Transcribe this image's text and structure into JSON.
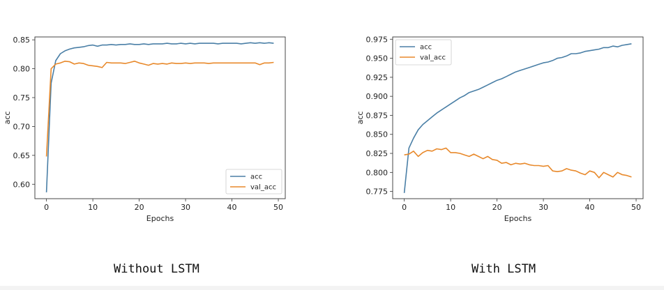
{
  "captions": {
    "left": "Without LSTM",
    "right": "With LSTM"
  },
  "colors": {
    "acc": "#4a7fa6",
    "val_acc": "#e8892b"
  },
  "chart_data": [
    {
      "type": "line",
      "xlabel": "Epochs",
      "ylabel": "acc",
      "xlim": [
        -2.5,
        51.5
      ],
      "ylim": [
        0.575,
        0.855
      ],
      "xticks": [
        0,
        10,
        20,
        30,
        40,
        50
      ],
      "xtick_labels": [
        "0",
        "10",
        "20",
        "30",
        "40",
        "50"
      ],
      "yticks": [
        0.6,
        0.65,
        0.7,
        0.75,
        0.8,
        0.85
      ],
      "ytick_labels": [
        "0.60",
        "0.65",
        "0.70",
        "0.75",
        "0.80",
        "0.85"
      ],
      "legend_position": "lower-right",
      "grid": false,
      "series": [
        {
          "name": "acc",
          "color": "#4a7fa6",
          "x": [
            0,
            1,
            2,
            3,
            4,
            5,
            6,
            7,
            8,
            9,
            10,
            11,
            12,
            13,
            14,
            15,
            16,
            17,
            18,
            19,
            20,
            21,
            22,
            23,
            24,
            25,
            26,
            27,
            28,
            29,
            30,
            31,
            32,
            33,
            34,
            35,
            36,
            37,
            38,
            39,
            40,
            41,
            42,
            43,
            44,
            45,
            46,
            47,
            48,
            49
          ],
          "values": [
            0.586,
            0.775,
            0.814,
            0.826,
            0.831,
            0.834,
            0.836,
            0.837,
            0.838,
            0.84,
            0.841,
            0.839,
            0.841,
            0.841,
            0.842,
            0.841,
            0.842,
            0.842,
            0.843,
            0.842,
            0.842,
            0.843,
            0.842,
            0.843,
            0.843,
            0.843,
            0.844,
            0.843,
            0.843,
            0.844,
            0.843,
            0.844,
            0.843,
            0.844,
            0.844,
            0.844,
            0.844,
            0.843,
            0.844,
            0.844,
            0.844,
            0.844,
            0.843,
            0.844,
            0.845,
            0.844,
            0.845,
            0.844,
            0.845,
            0.844
          ]
        },
        {
          "name": "val_acc",
          "color": "#e8892b",
          "x": [
            0,
            1,
            2,
            3,
            4,
            5,
            6,
            7,
            8,
            9,
            10,
            11,
            12,
            13,
            14,
            15,
            16,
            17,
            18,
            19,
            20,
            21,
            22,
            23,
            24,
            25,
            26,
            27,
            28,
            29,
            30,
            31,
            32,
            33,
            34,
            35,
            36,
            37,
            38,
            39,
            40,
            41,
            42,
            43,
            44,
            45,
            46,
            47,
            48,
            49
          ],
          "values": [
            0.648,
            0.8,
            0.808,
            0.81,
            0.813,
            0.812,
            0.808,
            0.81,
            0.809,
            0.806,
            0.805,
            0.804,
            0.802,
            0.811,
            0.81,
            0.81,
            0.81,
            0.809,
            0.811,
            0.813,
            0.81,
            0.808,
            0.806,
            0.809,
            0.808,
            0.809,
            0.808,
            0.81,
            0.809,
            0.809,
            0.81,
            0.809,
            0.81,
            0.81,
            0.81,
            0.809,
            0.81,
            0.81,
            0.81,
            0.81,
            0.81,
            0.81,
            0.81,
            0.81,
            0.81,
            0.81,
            0.807,
            0.81,
            0.81,
            0.811
          ]
        }
      ]
    },
    {
      "type": "line",
      "xlabel": "Epochs",
      "ylabel": "acc",
      "xlim": [
        -2.5,
        51.5
      ],
      "ylim": [
        0.7655,
        0.978
      ],
      "xticks": [
        0,
        10,
        20,
        30,
        40,
        50
      ],
      "xtick_labels": [
        "0",
        "10",
        "20",
        "30",
        "40",
        "50"
      ],
      "yticks": [
        0.775,
        0.8,
        0.825,
        0.85,
        0.875,
        0.9,
        0.925,
        0.95,
        0.975
      ],
      "ytick_labels": [
        "0.775",
        "0.800",
        "0.825",
        "0.850",
        "0.875",
        "0.900",
        "0.925",
        "0.950",
        "0.975"
      ],
      "legend_position": "upper-left",
      "grid": false,
      "series": [
        {
          "name": "acc",
          "color": "#4a7fa6",
          "x": [
            0,
            1,
            2,
            3,
            4,
            5,
            6,
            7,
            8,
            9,
            10,
            11,
            12,
            13,
            14,
            15,
            16,
            17,
            18,
            19,
            20,
            21,
            22,
            23,
            24,
            25,
            26,
            27,
            28,
            29,
            30,
            31,
            32,
            33,
            34,
            35,
            36,
            37,
            38,
            39,
            40,
            41,
            42,
            43,
            44,
            45,
            46,
            47,
            48,
            49
          ],
          "values": [
            0.773,
            0.832,
            0.845,
            0.856,
            0.863,
            0.868,
            0.873,
            0.878,
            0.882,
            0.886,
            0.89,
            0.894,
            0.898,
            0.901,
            0.905,
            0.907,
            0.909,
            0.912,
            0.915,
            0.918,
            0.921,
            0.923,
            0.926,
            0.929,
            0.932,
            0.934,
            0.936,
            0.938,
            0.94,
            0.942,
            0.944,
            0.945,
            0.947,
            0.95,
            0.951,
            0.953,
            0.956,
            0.956,
            0.957,
            0.959,
            0.96,
            0.961,
            0.962,
            0.964,
            0.964,
            0.966,
            0.965,
            0.967,
            0.968,
            0.969
          ]
        },
        {
          "name": "val_acc",
          "color": "#e8892b",
          "x": [
            0,
            1,
            2,
            3,
            4,
            5,
            6,
            7,
            8,
            9,
            10,
            11,
            12,
            13,
            14,
            15,
            16,
            17,
            18,
            19,
            20,
            21,
            22,
            23,
            24,
            25,
            26,
            27,
            28,
            29,
            30,
            31,
            32,
            33,
            34,
            35,
            36,
            37,
            38,
            39,
            40,
            41,
            42,
            43,
            44,
            45,
            46,
            47,
            48,
            49
          ],
          "values": [
            0.823,
            0.824,
            0.828,
            0.821,
            0.826,
            0.829,
            0.828,
            0.831,
            0.83,
            0.832,
            0.826,
            0.826,
            0.825,
            0.823,
            0.821,
            0.824,
            0.821,
            0.818,
            0.821,
            0.817,
            0.816,
            0.812,
            0.813,
            0.81,
            0.812,
            0.811,
            0.812,
            0.81,
            0.809,
            0.809,
            0.808,
            0.809,
            0.802,
            0.801,
            0.802,
            0.805,
            0.803,
            0.802,
            0.799,
            0.797,
            0.802,
            0.8,
            0.793,
            0.8,
            0.797,
            0.794,
            0.8,
            0.797,
            0.796,
            0.794
          ]
        }
      ]
    }
  ]
}
